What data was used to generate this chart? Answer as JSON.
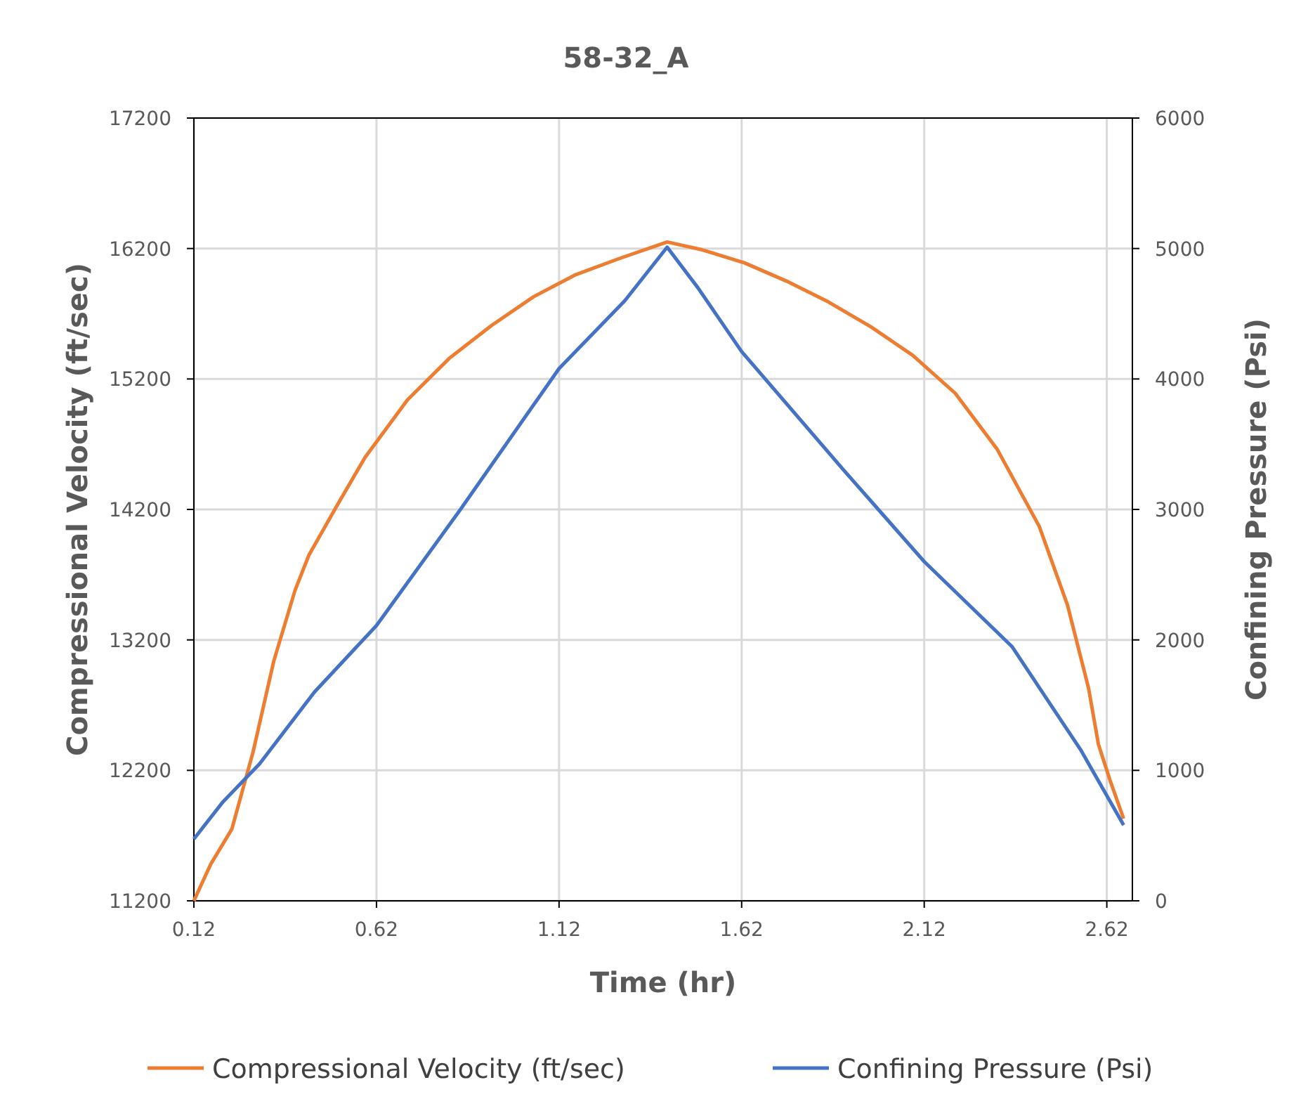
{
  "chart_data": {
    "type": "line",
    "title": "58-32_A",
    "xlabel": "Time (hr)",
    "ylabel": "Compressional Velocity  (ft/sec)",
    "y2label": "Confining Pressure  (Psi)",
    "xlim": [
      0.12,
      2.69
    ],
    "xticks": [
      0.12,
      0.62,
      1.12,
      1.62,
      2.12,
      2.62
    ],
    "ylim": [
      11200,
      17200
    ],
    "yticks": [
      11200,
      12200,
      13200,
      14200,
      15200,
      16200,
      17200
    ],
    "y2lim": [
      0,
      6000
    ],
    "y2ticks": [
      0,
      1000,
      2000,
      3000,
      4000,
      5000,
      6000
    ],
    "grid": true,
    "legend": "bottom",
    "marker": "none",
    "line_style": "solid",
    "series": [
      {
        "name": "Compressional Velocity (ft/sec)",
        "color": "#ed7d31",
        "x": [
          0.12,
          0.166,
          0.224,
          0.282,
          0.339,
          0.397,
          0.435,
          0.512,
          0.589,
          0.705,
          0.82,
          0.935,
          1.05,
          1.166,
          1.282,
          1.416,
          1.512,
          1.628,
          1.743,
          1.858,
          1.974,
          2.089,
          2.205,
          2.32,
          2.435,
          2.512,
          2.57,
          2.597,
          2.628,
          2.666
        ],
        "values": [
          11200,
          11480,
          11750,
          12340,
          13040,
          13580,
          13850,
          14230,
          14600,
          15040,
          15360,
          15610,
          15830,
          16000,
          16120,
          16250,
          16190,
          16090,
          15950,
          15790,
          15600,
          15380,
          15090,
          14660,
          14070,
          13470,
          12830,
          12400,
          12130,
          11830
        ]
      },
      {
        "name": "Confining Pressure (Psi)",
        "color": "#4472c4",
        "axis": "y2",
        "x": [
          0.12,
          0.2,
          0.3,
          0.45,
          0.62,
          0.85,
          1.12,
          1.3,
          1.416,
          1.5,
          1.62,
          1.9,
          2.12,
          2.36,
          2.55,
          2.666
        ],
        "values": [
          474,
          760,
          1050,
          1600,
          2110,
          3000,
          4080,
          4600,
          5010,
          4700,
          4210,
          3300,
          2600,
          1950,
          1150,
          580
        ]
      }
    ]
  }
}
